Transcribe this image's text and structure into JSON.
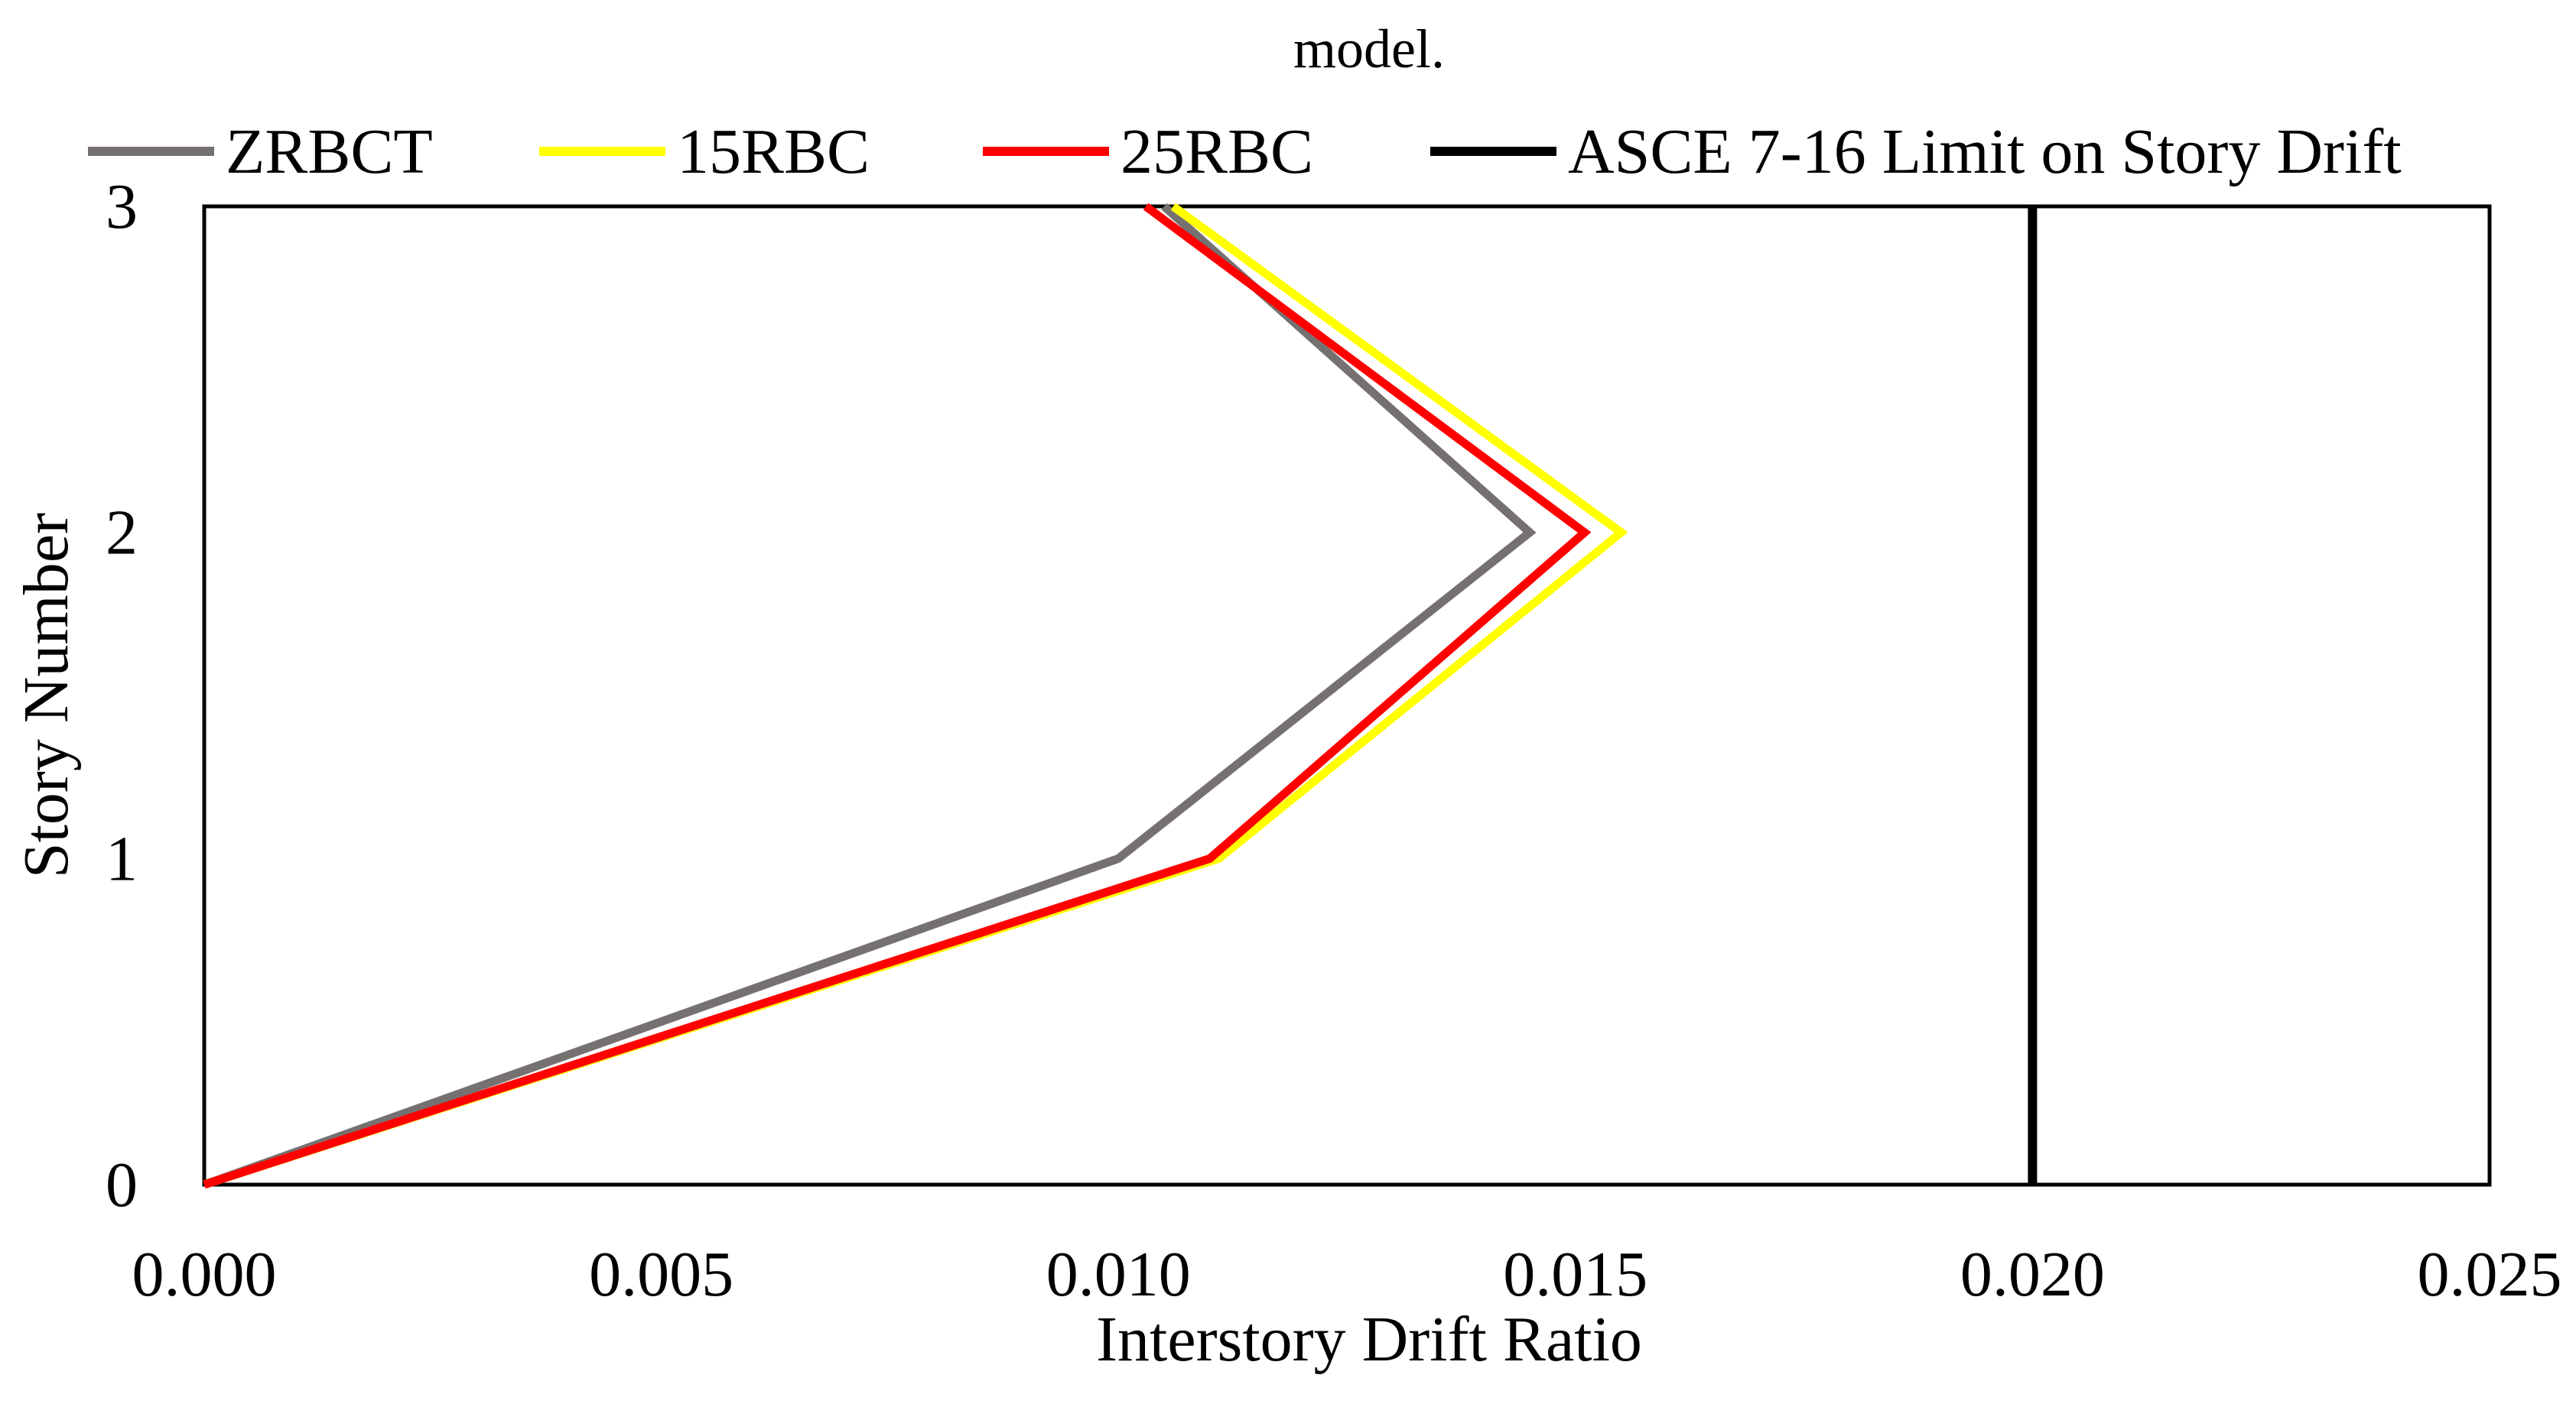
{
  "chart_data": {
    "type": "line",
    "title": "model.",
    "xlabel": "Interstory Drift Ratio",
    "ylabel": "Story Number",
    "xlim": [
      0,
      0.025
    ],
    "ylim": [
      0,
      3
    ],
    "x_ticks": [
      "0.000",
      "0.005",
      "0.010",
      "0.015",
      "0.020",
      "0.025"
    ],
    "y_ticks": [
      "0",
      "1",
      "2",
      "3"
    ],
    "grid": false,
    "legend_position": "top",
    "series": [
      {
        "name": "ZRBCT",
        "color": "#767171",
        "points": [
          [
            0,
            0
          ],
          [
            0.01,
            1
          ],
          [
            0.0145,
            2
          ],
          [
            0.0105,
            3
          ]
        ]
      },
      {
        "name": "15RBC",
        "color": "#FFFF00",
        "points": [
          [
            0,
            0
          ],
          [
            0.0111,
            1
          ],
          [
            0.0155,
            2
          ],
          [
            0.0106,
            3
          ]
        ]
      },
      {
        "name": "25RBC",
        "color": "#FF0000",
        "points": [
          [
            0,
            0
          ],
          [
            0.011,
            1
          ],
          [
            0.0151,
            2
          ],
          [
            0.0103,
            3
          ]
        ]
      },
      {
        "name": "ASCE 7-16 Limit on Story Drift",
        "color": "#000000",
        "points": [
          [
            0.02,
            0
          ],
          [
            0.02,
            3
          ]
        ]
      }
    ]
  }
}
